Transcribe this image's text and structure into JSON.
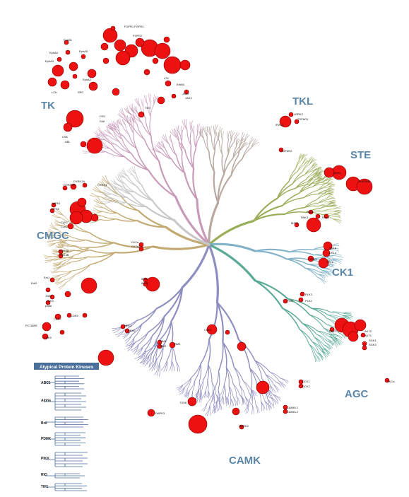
{
  "groups": {
    "TK": "TK",
    "TKL": "TKL",
    "STE": "STE",
    "CMGC": "CMGC",
    "CK1": "CK1",
    "AGC": "AGC",
    "CAMK": "CAMK"
  },
  "kinase_labels": {
    "fgfr": "FGFR1 FGFR3",
    "fgfr2": "FGFR2",
    "epha_top": "EphB1",
    "epha2": "EphA4",
    "epha3": "EphA3",
    "epha5": "EphA5",
    "epha6": "EphA2",
    "lck": "LCK",
    "src": "SRC",
    "abl": "ABL",
    "csk": "CSK",
    "fes": "FES",
    "fak": "FAK",
    "erbb": "ErbB4",
    "tie": "TIE2",
    "jak": "JAK2",
    "jak3": "JAK3",
    "ltk": "LTK",
    "tkl1": "LRRK2",
    "tkl2": "TGFbR1",
    "tkl3": "TGFbR2",
    "tkl4": "IRAK4",
    "ste1": "PAK1",
    "ste2": "PAK3",
    "ste3": "PAK4",
    "ste4": "MST1",
    "ste5": "MEK1",
    "ste6": "MAP4K4",
    "ck1a": "CK1a",
    "ck1d": "CK1d",
    "ck1e": "CK1e",
    "vrk": "VRK1",
    "plk1": "PLK1",
    "plk2": "PLK2",
    "plk3": "PLK3",
    "agc1": "AKT2",
    "agc2": "AKT1",
    "agc3": "SGK1",
    "agc4": "SGK3",
    "agc5": "PDK1",
    "agc6": "PKCa",
    "dck1": "DCK1",
    "dck2": "DCK2",
    "camkl1": "CAMKL1",
    "camkl2": "CAMKL2",
    "camk1": "PIM1",
    "camk2": "PIM2",
    "camk3": "PIM3",
    "camk4": "DAPK3",
    "camk5": "MARK4",
    "camk6": "NEK2",
    "camk7": "NEK6",
    "camk8": "TSSK",
    "camk9": "CHK1",
    "cmgc1": "DYRK1A",
    "cmgc2": "DYRK1B",
    "cmgc3": "DYRK4",
    "cmgc4": "HIPK1",
    "cmgc5": "HIPK2",
    "cmgc6": "CLK1",
    "cmgc7": "CLK2",
    "cmgc8": "GSK3A",
    "cmgc9": "GSK3B",
    "cmgc10": "Erk1",
    "cmgc11": "Erk2",
    "cmgc12": "JNK1",
    "cmgc13": "JNK3",
    "cmgc14": "p38a",
    "cmgc15": "CDK2",
    "cmgc16": "CDK5",
    "cmgc17": "CDK9",
    "cmgc18": "PCTAIRE",
    "cmgc19": "CK2a",
    "cmgc20": "CK2a2",
    "cmgc21": "IKKb",
    "cmgc22": "IKKe"
  },
  "legend": {
    "title": "Atypical Protein Kinases",
    "families": [
      "ABC1",
      "Alpha",
      "Brd",
      "PDHK",
      "PIKK",
      "RIO",
      "TIF1"
    ]
  },
  "colors": {
    "TK": "#c79ab8",
    "TKL": "#b8a8a0",
    "STE": "#9aae5a",
    "CMGC": "#c2aa72",
    "CK1": "#82b2c8",
    "AGC": "#5aaa96",
    "CAMK": "#8e8ec0",
    "atypical": "#4a6f9a",
    "hit": "#ee1111",
    "label": "#5b86a8"
  }
}
